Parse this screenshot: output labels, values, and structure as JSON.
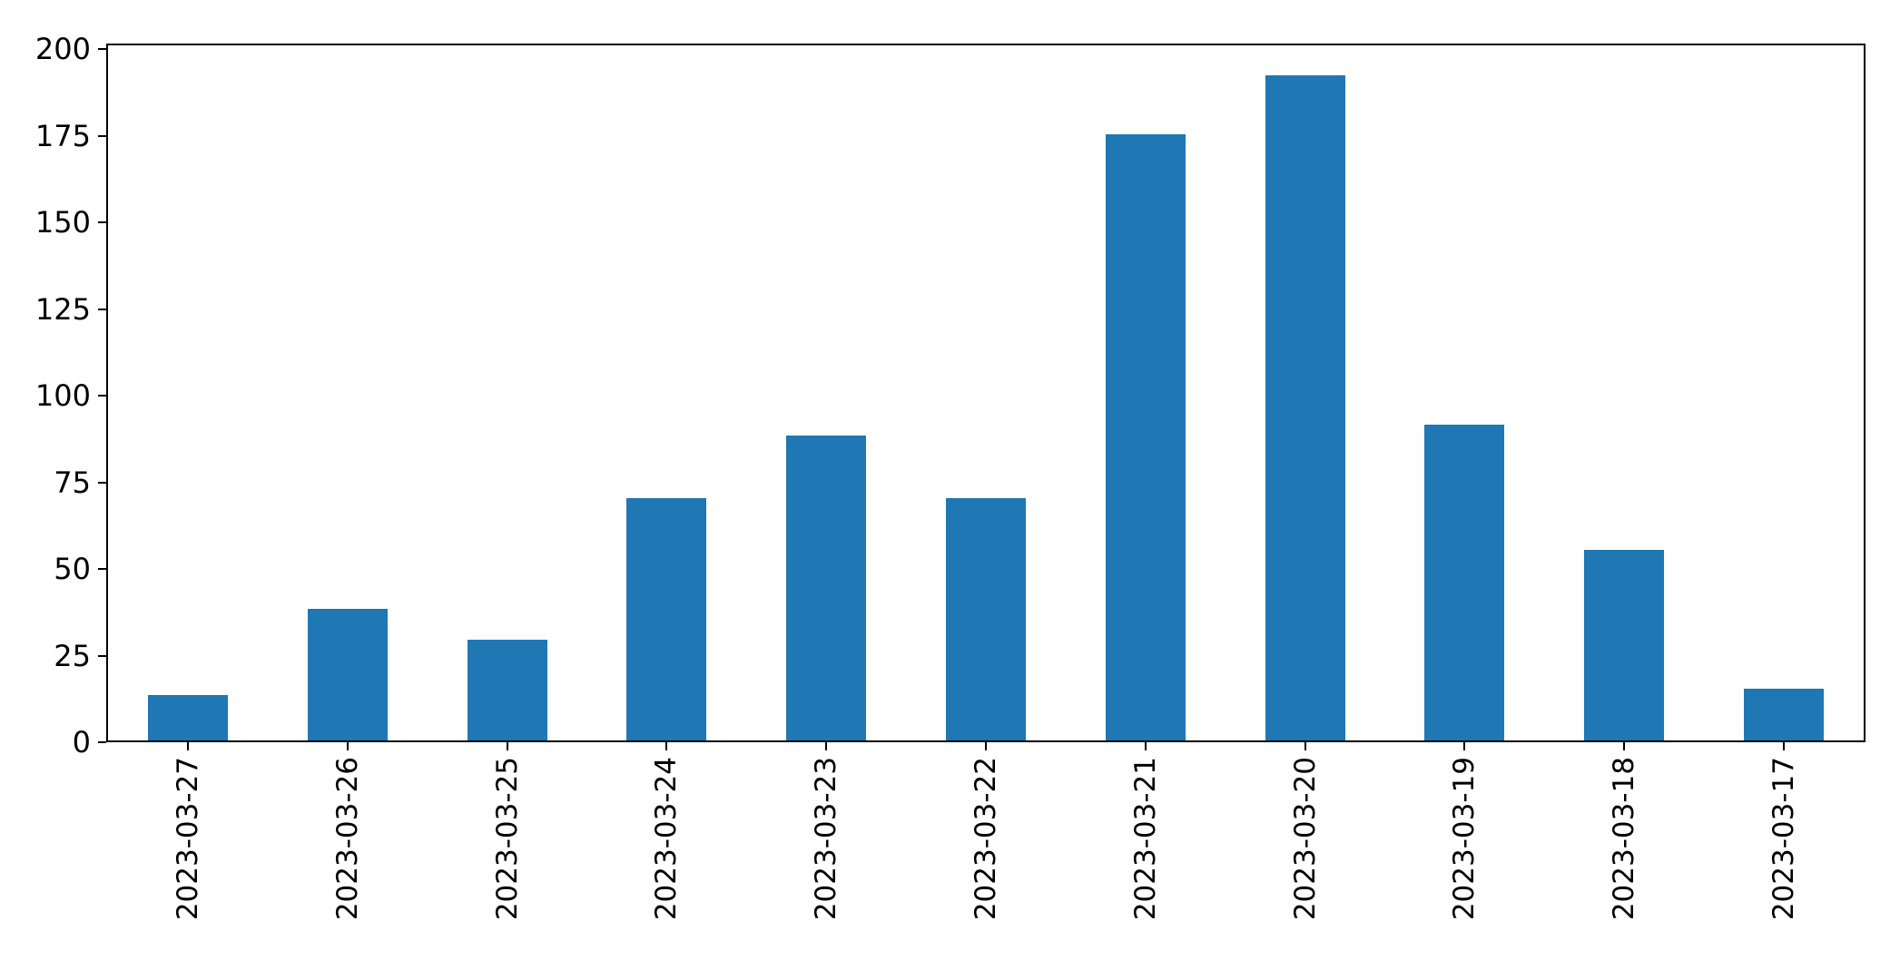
{
  "chart_data": {
    "type": "bar",
    "title": "",
    "xlabel": "",
    "ylabel": "",
    "categories": [
      "2023-03-27",
      "2023-03-26",
      "2023-03-25",
      "2023-03-24",
      "2023-03-23",
      "2023-03-22",
      "2023-03-21",
      "2023-03-20",
      "2023-03-19",
      "2023-03-18",
      "2023-03-17"
    ],
    "values": [
      13,
      38,
      29,
      70,
      88,
      70,
      175,
      192,
      91,
      55,
      15
    ],
    "yticks": [
      0,
      25,
      50,
      75,
      100,
      125,
      150,
      175,
      200
    ],
    "ylim": [
      0,
      201.6
    ],
    "x_tick_rotation": 90,
    "grid": false,
    "legend": null,
    "bar_color": "#1f77b4",
    "spine_color": "#000000",
    "background_color": "#ffffff",
    "tick_label_color": "#000000"
  }
}
